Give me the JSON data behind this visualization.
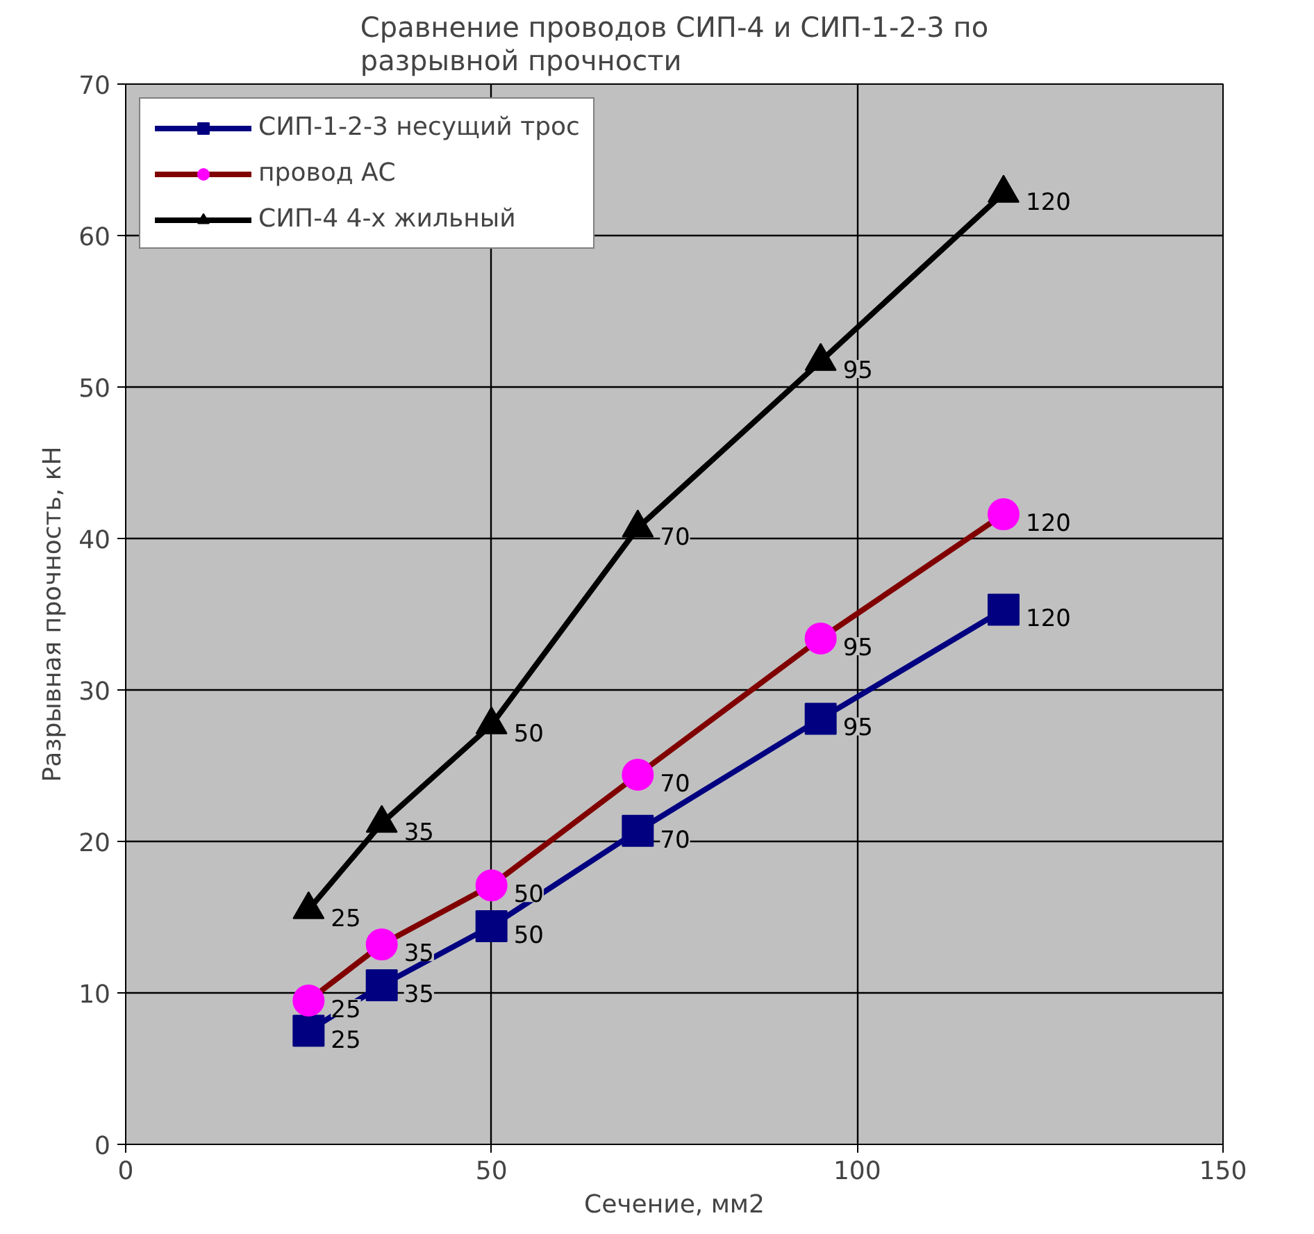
{
  "chart_data": {
    "type": "line",
    "title": "Сравнение проводов СИП-4 и СИП-1-2-3 по разрывной прочности",
    "xlabel": "Сечение, мм2",
    "ylabel": "Разрывная прочность, кН",
    "xlim": [
      0,
      150
    ],
    "xticks": [
      0,
      50,
      100,
      150
    ],
    "ylim": [
      0,
      70
    ],
    "yticks": [
      0,
      10,
      20,
      30,
      40,
      50,
      60,
      70
    ],
    "grid": true,
    "legend": "top left",
    "series": [
      {
        "name": "СИП-1-2-3 несущий трос",
        "color": "#000080",
        "marker": "square",
        "x": [
          25,
          35,
          50,
          70,
          95,
          120
        ],
        "values": [
          7.5,
          10.5,
          14.4,
          20.7,
          28.1,
          35.3
        ]
      },
      {
        "name": "провод АС",
        "color": "#800000",
        "colors": [
          "#ff00ff",
          "#ff00ff",
          "#ff00ff",
          "#ff00ff",
          "#ff00ff",
          "#ff00ff"
        ],
        "marker": "circle",
        "x": [
          25,
          35,
          50,
          70,
          95,
          120
        ],
        "values": [
          9.5,
          13.2,
          17.1,
          24.4,
          33.4,
          41.6
        ]
      },
      {
        "name": "СИП-4 4-х жильный",
        "color": "#000000",
        "marker": "triangle",
        "x": [
          25,
          35,
          50,
          70,
          95,
          120
        ],
        "values": [
          15.5,
          21.2,
          27.7,
          40.7,
          51.7,
          62.8
        ]
      }
    ],
    "annotations": [
      {
        "text": "25",
        "x": 25,
        "y": 7.5
      },
      {
        "text": "35",
        "x": 35,
        "y": 10.5
      },
      {
        "text": "50",
        "x": 50,
        "y": 14.4
      },
      {
        "text": "70",
        "x": 70,
        "y": 20.7
      },
      {
        "text": "95",
        "x": 95,
        "y": 28.1
      },
      {
        "text": "120",
        "x": 120,
        "y": 35.3
      },
      {
        "text": "25",
        "x": 25,
        "y": 9.5
      },
      {
        "text": "35",
        "x": 35,
        "y": 13.2
      },
      {
        "text": "50",
        "x": 50,
        "y": 17.1
      },
      {
        "text": "70",
        "x": 70,
        "y": 24.4
      },
      {
        "text": "95",
        "x": 95,
        "y": 33.4
      },
      {
        "text": "120",
        "x": 120,
        "y": 41.6
      },
      {
        "text": "25",
        "x": 25,
        "y": 15.5
      },
      {
        "text": "35",
        "x": 35,
        "y": 21.2
      },
      {
        "text": "50",
        "x": 50,
        "y": 27.7
      },
      {
        "text": "70",
        "x": 70,
        "y": 40.7
      },
      {
        "text": "95",
        "x": 95,
        "y": 51.7
      },
      {
        "text": "120",
        "x": 120,
        "y": 62.8
      }
    ]
  }
}
